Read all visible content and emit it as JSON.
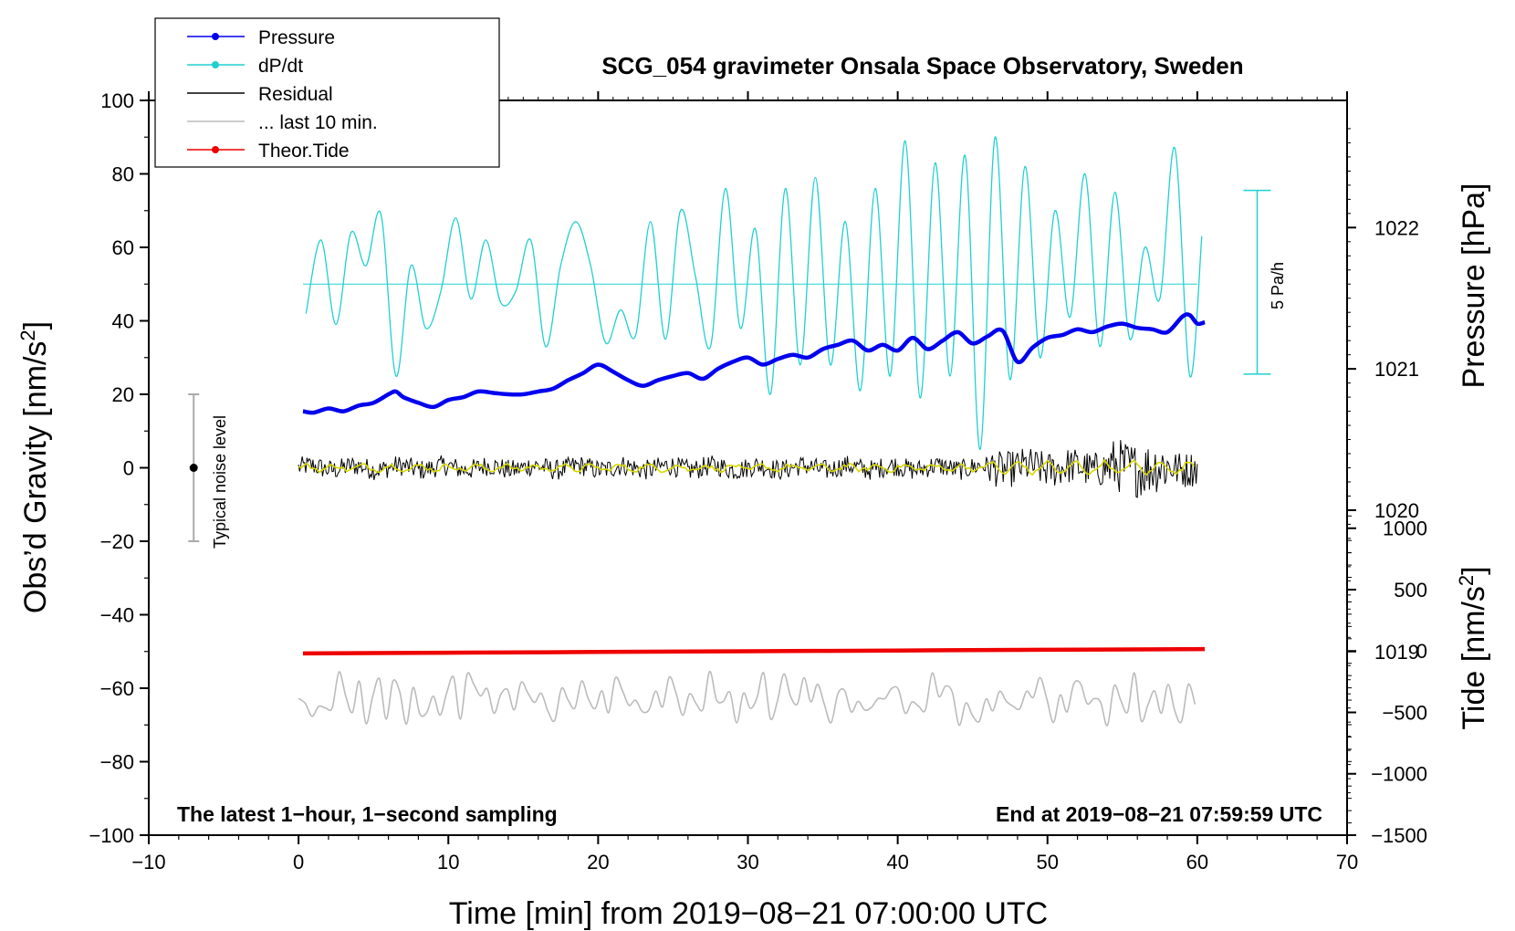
{
  "chart_data": {
    "type": "line",
    "title": "SCG_054 gravimeter Onsala Space Observatory, Sweden",
    "xlabel": "Time [min] from 2019−08−21 07:00:00 UTC",
    "ylabel_left_prefix": "Obs’d Gravity [nm/s",
    "ylabel_left_suffix": "]",
    "ylabel_right_pressure": "Pressure [hPa]",
    "ylabel_right_tide_prefix": "Tide [nm/s",
    "ylabel_right_tide_suffix": "]",
    "superscript": "2",
    "xlim": [
      -10,
      70
    ],
    "ylim": [
      -100,
      100
    ],
    "pressure_lim": [
      1017.7,
      1022.9
    ],
    "tide_lim": [
      -1500,
      4485
    ],
    "x_ticks": [
      "−10",
      "0",
      "10",
      "20",
      "30",
      "40",
      "50",
      "60",
      "70"
    ],
    "x_tick_values": [
      -10,
      0,
      10,
      20,
      30,
      40,
      50,
      60,
      70
    ],
    "y_ticks": [
      "100",
      "80",
      "60",
      "40",
      "20",
      "0",
      "−20",
      "−40",
      "−60",
      "−80",
      "−100"
    ],
    "y_tick_values": [
      100,
      80,
      60,
      40,
      20,
      0,
      -20,
      -40,
      -60,
      -80,
      -100
    ],
    "pressure_ticks": [
      "1022",
      "1021",
      "1020",
      "1019"
    ],
    "pressure_tick_values": [
      1022,
      1021,
      1020,
      1019
    ],
    "tide_ticks": [
      "1000",
      "500",
      "0",
      "−500",
      "−1000",
      "−1500"
    ],
    "tide_tick_values": [
      1000,
      500,
      0,
      -500,
      -1000,
      -1500
    ],
    "legend": [
      {
        "label": "Pressure",
        "color": "#0000ee",
        "marker": true
      },
      {
        "label": "dP/dt",
        "color": "#20d0d0",
        "marker": true
      },
      {
        "label": "Residual",
        "color": "#000000",
        "marker": false
      },
      {
        "label": "... last 10 min.",
        "color": "#bbbbbb",
        "marker": false
      },
      {
        "label": "Theor.Tide",
        "color": "#ee0000",
        "marker": true
      }
    ],
    "annotations": {
      "bottom_left": "The latest 1−hour, 1−second sampling",
      "bottom_right": "End at 2019−08−21 07:59:59 UTC",
      "noise_label": "Typical noise level",
      "scale_label": "5 Pa/h"
    },
    "noise_bar": {
      "x": -7,
      "center": 0,
      "half_range": 20
    },
    "scale_bar": {
      "x": 64,
      "y_top": 75.5,
      "y_bottom": 25.5
    },
    "series": [
      {
        "name": "Pressure",
        "color": "#0000ee",
        "axis": "pressure",
        "x": [
          0.3,
          1,
          2,
          3,
          4,
          5,
          6,
          6.5,
          7,
          8,
          9,
          10,
          11,
          12,
          13,
          14,
          15,
          16,
          17,
          18,
          19,
          20,
          21,
          22,
          23,
          24,
          25,
          26,
          27,
          28,
          29,
          30,
          31,
          32,
          33,
          34,
          35,
          36,
          37,
          38,
          39,
          40,
          41,
          42,
          43,
          44,
          45,
          46,
          47,
          48,
          49,
          50,
          51,
          52,
          53,
          54,
          55,
          56,
          57,
          58,
          59,
          59.5,
          60,
          60.5
        ],
        "values": [
          1020.7,
          1020.69,
          1020.72,
          1020.7,
          1020.74,
          1020.76,
          1020.82,
          1020.84,
          1020.8,
          1020.76,
          1020.73,
          1020.78,
          1020.8,
          1020.84,
          1020.83,
          1020.82,
          1020.82,
          1020.84,
          1020.86,
          1020.92,
          1020.97,
          1021.03,
          1020.98,
          1020.92,
          1020.88,
          1020.92,
          1020.95,
          1020.97,
          1020.93,
          1021.0,
          1021.05,
          1021.08,
          1021.03,
          1021.07,
          1021.1,
          1021.08,
          1021.14,
          1021.17,
          1021.2,
          1021.13,
          1021.17,
          1021.13,
          1021.22,
          1021.14,
          1021.2,
          1021.26,
          1021.18,
          1021.23,
          1021.27,
          1021.05,
          1021.15,
          1021.22,
          1021.24,
          1021.28,
          1021.26,
          1021.3,
          1021.32,
          1021.29,
          1021.28,
          1021.26,
          1021.37,
          1021.38,
          1021.32,
          1021.33
        ]
      },
      {
        "name": "dP/dt",
        "color": "#20d0d0",
        "axis": "left",
        "x": [
          0.5,
          1.5,
          2.5,
          3.5,
          4.5,
          5.5,
          6.5,
          7.5,
          8.5,
          9.5,
          10.5,
          11.5,
          12.5,
          13.5,
          14.5,
          15.5,
          16.5,
          17.5,
          18.5,
          19.5,
          20.5,
          21.5,
          22.5,
          23.5,
          24.5,
          25.5,
          26.5,
          27.5,
          28.5,
          29.5,
          30.5,
          31.5,
          32.5,
          33.5,
          34.5,
          35.5,
          36.5,
          37.5,
          38.5,
          39.5,
          40.5,
          41.5,
          42.5,
          43.5,
          44.5,
          45.5,
          46.5,
          47.5,
          48.5,
          49.5,
          50.5,
          51.5,
          52.5,
          53.5,
          54.5,
          55.5,
          56.5,
          57.5,
          58.5,
          59.5,
          60.3
        ],
        "values": [
          42,
          62,
          39,
          64,
          55,
          69,
          25,
          55,
          38,
          48,
          68,
          46,
          62,
          45,
          48,
          62,
          33,
          55,
          67,
          55,
          34,
          43,
          36,
          67,
          35,
          70,
          52,
          33,
          76,
          38,
          65,
          20,
          76,
          28,
          79,
          28,
          67,
          21,
          76,
          25,
          89,
          19,
          83,
          25,
          85,
          5,
          90,
          24,
          82,
          30,
          70,
          41,
          80,
          33,
          75,
          35,
          60,
          46,
          87,
          25,
          63
        ]
      },
      {
        "name": "dP/dt baseline",
        "color": "#20d0d0",
        "axis": "left",
        "x": [
          0.3,
          60
        ],
        "values": [
          50,
          50
        ]
      },
      {
        "name": "Residual",
        "color": "#000000",
        "axis": "left",
        "x": [
          0,
          60
        ],
        "values": [
          0,
          0
        ]
      },
      {
        "name": "... last 10 min.",
        "color": "#bbbbbb",
        "axis": "left",
        "x": [
          0,
          60
        ],
        "values": [
          -63,
          -64
        ]
      },
      {
        "name": "Theor.Tide",
        "color": "#ee0000",
        "axis": "tide",
        "x": [
          0.3,
          10,
          20,
          30,
          40,
          50,
          60.5
        ],
        "values": [
          -20,
          -14,
          -8,
          -2,
          4,
          10,
          16
        ]
      }
    ]
  }
}
